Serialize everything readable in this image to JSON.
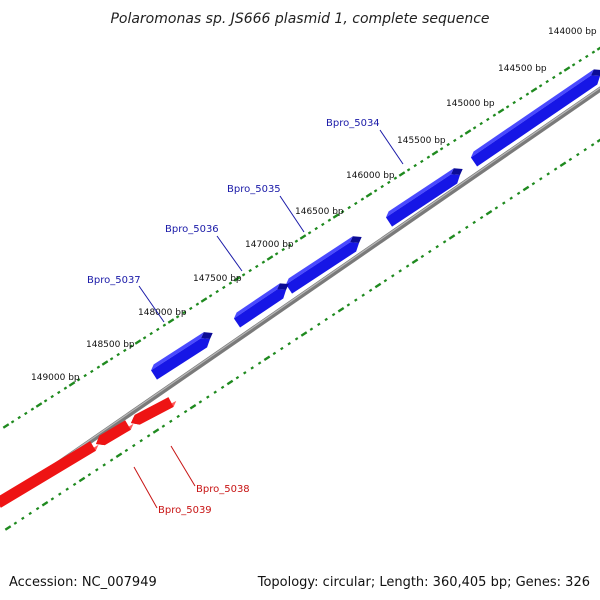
{
  "title": "Polaromonas sp. JS666 plasmid 1, complete sequence",
  "footer": {
    "accession": "Accession: NC_007949",
    "summary": "Topology: circular; Length: 360,405 bp; Genes: 326"
  },
  "colors": {
    "forward_gene": "#1616e6",
    "forward_gene_top": "#4a4aff",
    "forward_gene_side": "#0c0c96",
    "reverse_gene": "#ee1414",
    "reverse_gene_top": "#ff5a5a",
    "reverse_gene_side": "#a00c0c",
    "backbone": "#7a7a7a",
    "ticks": "#1f8a1f",
    "forward_label": "#1a1aa8",
    "reverse_label": "#c81414"
  },
  "ruler_labels": [
    "144000 bp",
    "144500 bp",
    "145000 bp",
    "145500 bp",
    "146000 bp",
    "146500 bp",
    "147000 bp",
    "147500 bp",
    "148000 bp",
    "148500 bp",
    "149000 bp"
  ],
  "forward_genes": [
    {
      "name": "Bpro_5034"
    },
    {
      "name": "Bpro_5035"
    },
    {
      "name": "Bpro_5036"
    },
    {
      "name": "Bpro_5037"
    }
  ],
  "reverse_genes": [
    {
      "name": "Bpro_5038"
    },
    {
      "name": "Bpro_5039"
    }
  ]
}
